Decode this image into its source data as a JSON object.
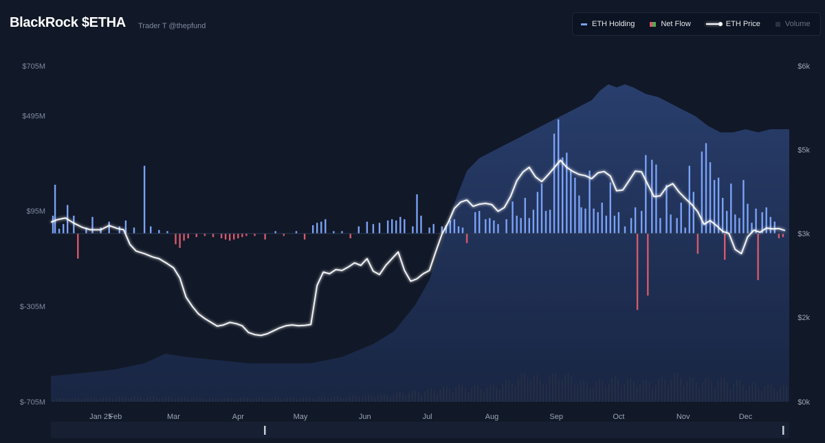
{
  "header": {
    "title": "BlackRock $ETHA",
    "subtitle": "Trader T @thepfund"
  },
  "legend": {
    "items": [
      {
        "key": "holding",
        "label": "ETH Holding",
        "color": "#7aa2f7",
        "icon": "bar-swatch"
      },
      {
        "key": "flow",
        "label": "Net Flow",
        "color": "#d65a6c",
        "icon": "split-swatch"
      },
      {
        "key": "price",
        "label": "ETH Price",
        "color": "#ffffff",
        "icon": "glow-line-swatch"
      },
      {
        "key": "volume",
        "label": "Volume",
        "color": "#2a3244",
        "icon": "square-swatch"
      }
    ]
  },
  "chart_data": {
    "type": "bar",
    "title": "BlackRock $ETHA",
    "left_axis": {
      "ticks": [
        "$705M",
        "$495M",
        "$95M",
        "$-305M",
        "$-705M"
      ],
      "values": [
        705,
        495,
        95,
        -305,
        -705
      ],
      "range": [
        -705,
        705
      ]
    },
    "right_axis": {
      "ticks": [
        "$6k",
        "$5k",
        "$3k",
        "$2k",
        "$0k"
      ],
      "values": [
        6000,
        5000,
        3000,
        2000,
        0
      ]
    },
    "x_ticks": [
      "Jan 25",
      "Feb",
      "Mar",
      "Apr",
      "May",
      "Jun",
      "Jul",
      "Aug",
      "Sep",
      "Oct",
      "Nov",
      "Dec"
    ],
    "x_tick_days": [
      24,
      31,
      59,
      90,
      120,
      151,
      181,
      212,
      243,
      273,
      304,
      334
    ],
    "day_range": [
      0,
      355
    ],
    "colors": {
      "inflow": "#7aa2f7",
      "outflow": "#d65a6c",
      "price": "#ffffff",
      "holding_area": "#22355f",
      "volume": "#2a3244"
    },
    "net_flow": [
      [
        1,
        75
      ],
      [
        2,
        205
      ],
      [
        4,
        20
      ],
      [
        6,
        40
      ],
      [
        8,
        120
      ],
      [
        11,
        75
      ],
      [
        13,
        -105
      ],
      [
        17,
        25
      ],
      [
        20,
        70
      ],
      [
        24,
        25
      ],
      [
        28,
        50
      ],
      [
        33,
        30
      ],
      [
        36,
        55
      ],
      [
        40,
        25
      ],
      [
        45,
        285
      ],
      [
        48,
        30
      ],
      [
        52,
        15
      ],
      [
        56,
        10
      ],
      [
        60,
        -45
      ],
      [
        62,
        -60
      ],
      [
        64,
        -30
      ],
      [
        66,
        -20
      ],
      [
        70,
        -15
      ],
      [
        74,
        -10
      ],
      [
        78,
        -15
      ],
      [
        82,
        -20
      ],
      [
        84,
        -25
      ],
      [
        86,
        -30
      ],
      [
        88,
        -25
      ],
      [
        90,
        -20
      ],
      [
        92,
        -15
      ],
      [
        94,
        -10
      ],
      [
        98,
        -10
      ],
      [
        103,
        -25
      ],
      [
        108,
        10
      ],
      [
        112,
        -10
      ],
      [
        118,
        10
      ],
      [
        122,
        -25
      ],
      [
        126,
        35
      ],
      [
        128,
        45
      ],
      [
        130,
        50
      ],
      [
        132,
        60
      ],
      [
        136,
        10
      ],
      [
        140,
        10
      ],
      [
        144,
        -20
      ],
      [
        148,
        30
      ],
      [
        152,
        50
      ],
      [
        155,
        40
      ],
      [
        158,
        45
      ],
      [
        162,
        55
      ],
      [
        164,
        60
      ],
      [
        166,
        55
      ],
      [
        168,
        70
      ],
      [
        170,
        60
      ],
      [
        174,
        30
      ],
      [
        176,
        165
      ],
      [
        178,
        75
      ],
      [
        182,
        25
      ],
      [
        184,
        40
      ],
      [
        188,
        30
      ],
      [
        190,
        35
      ],
      [
        192,
        55
      ],
      [
        194,
        60
      ],
      [
        196,
        30
      ],
      [
        198,
        25
      ],
      [
        200,
        -40
      ],
      [
        204,
        90
      ],
      [
        206,
        95
      ],
      [
        209,
        60
      ],
      [
        211,
        65
      ],
      [
        213,
        55
      ],
      [
        215,
        40
      ],
      [
        219,
        60
      ],
      [
        222,
        135
      ],
      [
        224,
        75
      ],
      [
        226,
        65
      ],
      [
        228,
        150
      ],
      [
        230,
        65
      ],
      [
        232,
        100
      ],
      [
        234,
        175
      ],
      [
        236,
        210
      ],
      [
        238,
        95
      ],
      [
        240,
        100
      ],
      [
        242,
        420
      ],
      [
        244,
        480
      ],
      [
        246,
        320
      ],
      [
        248,
        340
      ],
      [
        250,
        265
      ],
      [
        252,
        235
      ],
      [
        254,
        160
      ],
      [
        255,
        110
      ],
      [
        257,
        105
      ],
      [
        259,
        265
      ],
      [
        261,
        105
      ],
      [
        263,
        90
      ],
      [
        265,
        130
      ],
      [
        267,
        75
      ],
      [
        269,
        215
      ],
      [
        271,
        75
      ],
      [
        273,
        90
      ],
      [
        276,
        30
      ],
      [
        279,
        65
      ],
      [
        281,
        110
      ],
      [
        282,
        -320
      ],
      [
        284,
        95
      ],
      [
        286,
        330
      ],
      [
        287,
        -260
      ],
      [
        289,
        310
      ],
      [
        291,
        290
      ],
      [
        293,
        65
      ],
      [
        296,
        205
      ],
      [
        298,
        80
      ],
      [
        301,
        65
      ],
      [
        303,
        130
      ],
      [
        305,
        25
      ],
      [
        307,
        285
      ],
      [
        309,
        175
      ],
      [
        311,
        -85
      ],
      [
        313,
        345
      ],
      [
        315,
        380
      ],
      [
        317,
        300
      ],
      [
        319,
        225
      ],
      [
        321,
        235
      ],
      [
        323,
        150
      ],
      [
        324,
        -110
      ],
      [
        325,
        95
      ],
      [
        327,
        210
      ],
      [
        329,
        80
      ],
      [
        331,
        65
      ],
      [
        333,
        225
      ],
      [
        335,
        125
      ],
      [
        337,
        45
      ],
      [
        339,
        105
      ],
      [
        340,
        -195
      ],
      [
        342,
        90
      ],
      [
        344,
        110
      ],
      [
        346,
        70
      ],
      [
        348,
        50
      ],
      [
        350,
        -20
      ],
      [
        352,
        -15
      ]
    ],
    "eth_price": [
      [
        0,
        3270
      ],
      [
        3,
        3330
      ],
      [
        7,
        3370
      ],
      [
        11,
        3250
      ],
      [
        15,
        3150
      ],
      [
        19,
        3090
      ],
      [
        24,
        3090
      ],
      [
        28,
        3190
      ],
      [
        32,
        3120
      ],
      [
        35,
        3090
      ],
      [
        38,
        2870
      ],
      [
        41,
        2790
      ],
      [
        45,
        2760
      ],
      [
        49,
        2720
      ],
      [
        52,
        2700
      ],
      [
        56,
        2640
      ],
      [
        59,
        2590
      ],
      [
        62,
        2470
      ],
      [
        65,
        2240
      ],
      [
        68,
        2130
      ],
      [
        71,
        2040
      ],
      [
        74,
        1970
      ],
      [
        77,
        1880
      ],
      [
        80,
        1790
      ],
      [
        83,
        1820
      ],
      [
        86,
        1880
      ],
      [
        89,
        1850
      ],
      [
        92,
        1800
      ],
      [
        95,
        1640
      ],
      [
        98,
        1590
      ],
      [
        101,
        1570
      ],
      [
        104,
        1610
      ],
      [
        107,
        1680
      ],
      [
        110,
        1750
      ],
      [
        113,
        1800
      ],
      [
        116,
        1820
      ],
      [
        119,
        1800
      ],
      [
        122,
        1810
      ],
      [
        125,
        1830
      ],
      [
        128,
        2380
      ],
      [
        131,
        2540
      ],
      [
        134,
        2520
      ],
      [
        137,
        2570
      ],
      [
        140,
        2560
      ],
      [
        143,
        2600
      ],
      [
        146,
        2650
      ],
      [
        149,
        2620
      ],
      [
        152,
        2700
      ],
      [
        155,
        2550
      ],
      [
        158,
        2510
      ],
      [
        161,
        2620
      ],
      [
        164,
        2700
      ],
      [
        167,
        2780
      ],
      [
        170,
        2560
      ],
      [
        173,
        2430
      ],
      [
        176,
        2460
      ],
      [
        179,
        2520
      ],
      [
        182,
        2560
      ],
      [
        185,
        2780
      ],
      [
        188,
        2990
      ],
      [
        191,
        3260
      ],
      [
        194,
        3600
      ],
      [
        197,
        3750
      ],
      [
        200,
        3800
      ],
      [
        203,
        3650
      ],
      [
        206,
        3700
      ],
      [
        209,
        3720
      ],
      [
        212,
        3690
      ],
      [
        215,
        3530
      ],
      [
        218,
        3620
      ],
      [
        221,
        3880
      ],
      [
        224,
        4260
      ],
      [
        227,
        4470
      ],
      [
        230,
        4580
      ],
      [
        233,
        4350
      ],
      [
        236,
        4240
      ],
      [
        239,
        4400
      ],
      [
        242,
        4570
      ],
      [
        245,
        4750
      ],
      [
        248,
        4580
      ],
      [
        251,
        4480
      ],
      [
        254,
        4410
      ],
      [
        257,
        4380
      ],
      [
        260,
        4310
      ],
      [
        263,
        4450
      ],
      [
        266,
        4480
      ],
      [
        269,
        4370
      ],
      [
        272,
        4020
      ],
      [
        275,
        4040
      ],
      [
        278,
        4260
      ],
      [
        281,
        4490
      ],
      [
        284,
        4470
      ],
      [
        287,
        4170
      ],
      [
        290,
        3880
      ],
      [
        293,
        3900
      ],
      [
        296,
        4110
      ],
      [
        299,
        4190
      ],
      [
        302,
        3990
      ],
      [
        305,
        3840
      ],
      [
        308,
        3700
      ],
      [
        311,
        3520
      ],
      [
        314,
        3220
      ],
      [
        317,
        3310
      ],
      [
        320,
        3190
      ],
      [
        323,
        3050
      ],
      [
        326,
        3000
      ],
      [
        329,
        2810
      ],
      [
        332,
        2760
      ],
      [
        335,
        2960
      ],
      [
        338,
        3080
      ],
      [
        341,
        3030
      ],
      [
        344,
        3130
      ],
      [
        347,
        3110
      ],
      [
        350,
        3120
      ],
      [
        353,
        3070
      ]
    ],
    "holding_area": [
      [
        0,
        0.08
      ],
      [
        15,
        0.09
      ],
      [
        30,
        0.1
      ],
      [
        45,
        0.12
      ],
      [
        55,
        0.15
      ],
      [
        65,
        0.14
      ],
      [
        80,
        0.13
      ],
      [
        95,
        0.12
      ],
      [
        110,
        0.12
      ],
      [
        125,
        0.12
      ],
      [
        140,
        0.14
      ],
      [
        155,
        0.18
      ],
      [
        165,
        0.22
      ],
      [
        175,
        0.3
      ],
      [
        182,
        0.38
      ],
      [
        188,
        0.5
      ],
      [
        194,
        0.62
      ],
      [
        200,
        0.72
      ],
      [
        206,
        0.76
      ],
      [
        212,
        0.78
      ],
      [
        218,
        0.8
      ],
      [
        224,
        0.82
      ],
      [
        230,
        0.84
      ],
      [
        236,
        0.86
      ],
      [
        242,
        0.88
      ],
      [
        248,
        0.9
      ],
      [
        254,
        0.92
      ],
      [
        260,
        0.94
      ],
      [
        264,
        0.97
      ],
      [
        268,
        0.99
      ],
      [
        272,
        0.98
      ],
      [
        276,
        0.99
      ],
      [
        280,
        0.98
      ],
      [
        286,
        0.96
      ],
      [
        292,
        0.95
      ],
      [
        298,
        0.93
      ],
      [
        304,
        0.91
      ],
      [
        310,
        0.89
      ],
      [
        316,
        0.86
      ],
      [
        322,
        0.84
      ],
      [
        328,
        0.84
      ],
      [
        334,
        0.85
      ],
      [
        340,
        0.84
      ],
      [
        346,
        0.85
      ],
      [
        352,
        0.85
      ],
      [
        355,
        0.85
      ]
    ],
    "volume": [
      [
        0,
        0.06
      ],
      [
        20,
        0.08
      ],
      [
        40,
        0.1
      ],
      [
        60,
        0.09
      ],
      [
        80,
        0.07
      ],
      [
        100,
        0.08
      ],
      [
        120,
        0.08
      ],
      [
        140,
        0.1
      ],
      [
        160,
        0.14
      ],
      [
        180,
        0.22
      ],
      [
        195,
        0.3
      ],
      [
        210,
        0.28
      ],
      [
        225,
        0.45
      ],
      [
        230,
        0.6
      ],
      [
        235,
        0.4
      ],
      [
        245,
        0.55
      ],
      [
        255,
        0.38
      ],
      [
        260,
        0.35
      ],
      [
        270,
        0.45
      ],
      [
        280,
        0.4
      ],
      [
        290,
        0.38
      ],
      [
        300,
        0.52
      ],
      [
        310,
        0.4
      ],
      [
        320,
        0.45
      ],
      [
        330,
        0.38
      ],
      [
        340,
        0.32
      ],
      [
        350,
        0.3
      ],
      [
        355,
        0.28
      ]
    ]
  }
}
